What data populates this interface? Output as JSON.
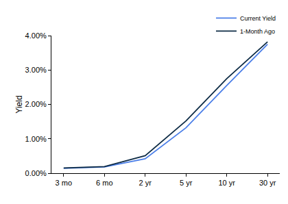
{
  "chart_data": {
    "type": "line",
    "y_label": "Yield",
    "categories": [
      "3 mo",
      "6 mo",
      "2 yr",
      "5 yr",
      "10 yr",
      "30 yr"
    ],
    "series": [
      {
        "name": "Current Yield",
        "color": "#4a7ee8",
        "values": [
          0.14,
          0.18,
          0.42,
          1.32,
          2.55,
          3.75
        ]
      },
      {
        "name": "1-Month Ago",
        "color": "#0d2b45",
        "values": [
          0.15,
          0.19,
          0.51,
          1.52,
          2.75,
          3.82
        ]
      }
    ],
    "ylim": [
      0,
      4
    ],
    "yticks": [
      {
        "value": 0,
        "label": "0.00%"
      },
      {
        "value": 1,
        "label": "1.00%"
      },
      {
        "value": 2,
        "label": "2.00%"
      },
      {
        "value": 3,
        "label": "3.00%"
      },
      {
        "value": 4,
        "label": "4.00%"
      }
    ],
    "grid": false,
    "legend": "top-right"
  }
}
